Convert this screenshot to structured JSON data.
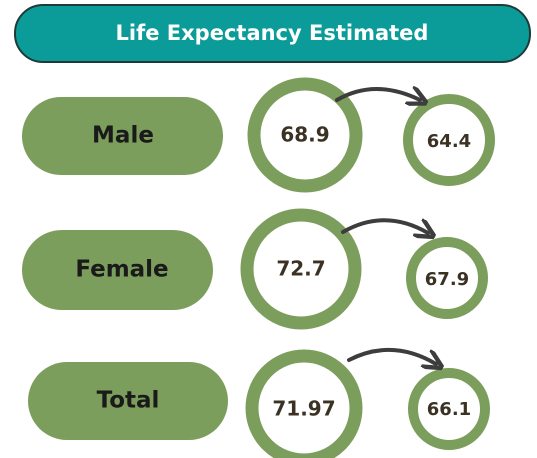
{
  "header": {
    "title": "Life Expectancy Estimated"
  },
  "rows": [
    {
      "label": "Male",
      "before": 68.9,
      "after": 64.4
    },
    {
      "label": "Female",
      "before": 72.7,
      "after": 67.9
    },
    {
      "label": "Total",
      "before": 71.97,
      "after": 66.1
    }
  ]
}
